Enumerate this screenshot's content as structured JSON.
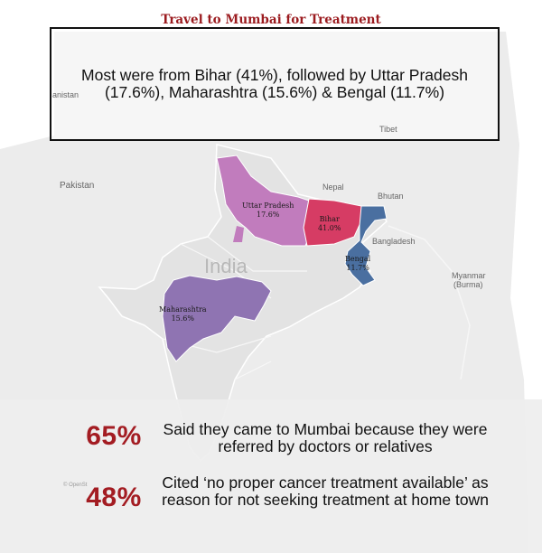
{
  "header": {
    "title": "Travel to Mumbai for Treatment"
  },
  "callout": {
    "text": "Most were from Bihar (41%), followed by Uttar Pradesh (17.6%), Maharashtra (15.6%) & Bengal (11.7%)"
  },
  "map": {
    "place_labels": {
      "india": "India",
      "pakistan": "Pakistan",
      "nepal": "Nepal",
      "bhutan": "Bhutan",
      "bangladesh": "Bangladesh",
      "myanmar": "Myanmar",
      "burma": "(Burma)",
      "tibet": "Tibet",
      "partial_left": "anistan",
      "attribution": "© OpenSt"
    },
    "regions": [
      {
        "name": "Uttar Pradesh",
        "value": "17.6%",
        "color": "#c17cbd"
      },
      {
        "name": "Bihar",
        "value": "41.0%",
        "color": "#d63c64"
      },
      {
        "name": "Maharashtra",
        "value": "15.6%",
        "color": "#8f74b2"
      },
      {
        "name": "Bengal",
        "value": "11.7%",
        "color": "#4a6fa0"
      }
    ],
    "colors": {
      "land": "#e9e9e9",
      "border": "#ffffff",
      "water": "#ffffff"
    }
  },
  "stats": [
    {
      "value": "65%",
      "text": "Said they came to Mumbai because they were referred by doctors or relatives"
    },
    {
      "value": "48%",
      "text": "Cited ‘no proper cancer treatment available’ as reason for not seeking treatment at home town"
    }
  ]
}
